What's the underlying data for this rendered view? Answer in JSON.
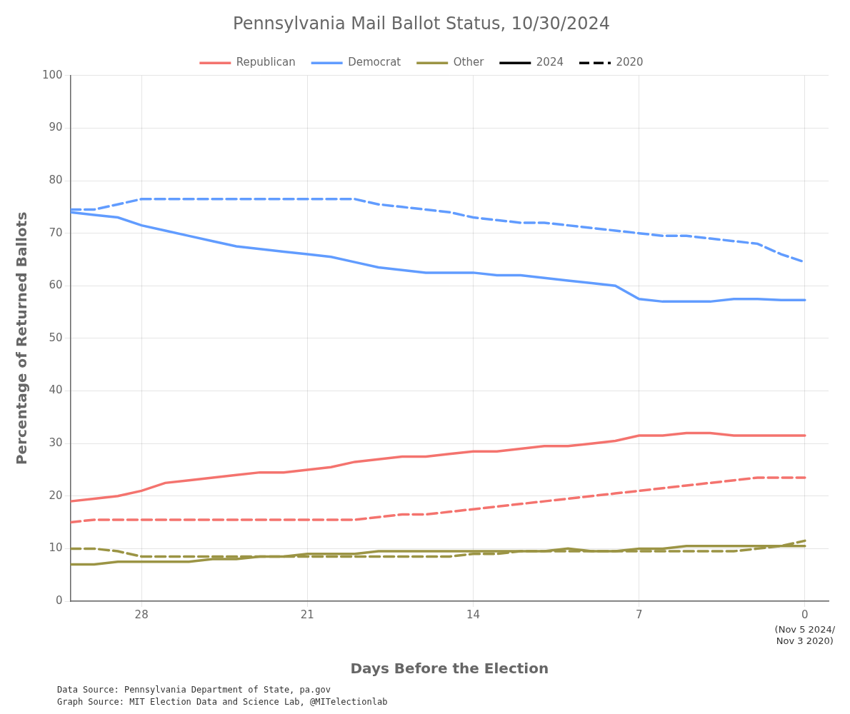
{
  "chart_data": {
    "type": "line",
    "title": "Pennsylvania Mail Ballot Status, 10/30/2024",
    "xlabel": "Days Before the Election",
    "ylabel": "Percentage of Returned Ballots",
    "x": [
      31,
      30,
      29,
      28,
      27,
      26,
      25,
      24,
      23,
      22,
      21,
      20,
      19,
      18,
      17,
      16,
      15,
      14,
      13,
      12,
      11,
      10,
      9,
      8,
      7,
      6,
      5,
      4,
      3,
      2,
      1,
      0
    ],
    "series": [
      {
        "name": "Democrat",
        "color": "#619CFF",
        "line_style": "solid",
        "values": [
          74.0,
          73.5,
          73.0,
          71.5,
          70.5,
          69.5,
          68.5,
          67.5,
          67.0,
          66.5,
          66.0,
          65.5,
          64.5,
          63.5,
          63.0,
          62.5,
          62.5,
          62.5,
          62.0,
          62.0,
          61.5,
          61.0,
          60.5,
          60.0,
          57.5,
          57.0,
          57.0,
          57.0,
          57.5,
          57.5,
          57.3,
          57.3
        ]
      },
      {
        "name": "Republican",
        "color": "#F4736E",
        "line_style": "solid",
        "values": [
          19.0,
          19.5,
          20.0,
          21.0,
          22.5,
          23.0,
          23.5,
          24.0,
          24.5,
          24.5,
          25.0,
          25.5,
          26.5,
          27.0,
          27.5,
          27.5,
          28.0,
          28.5,
          28.5,
          29.0,
          29.5,
          29.5,
          30.0,
          30.5,
          31.5,
          31.5,
          32.0,
          32.0,
          31.5,
          31.5,
          31.5,
          31.5
        ]
      },
      {
        "name": "Other",
        "color": "#9B9444",
        "line_style": "solid",
        "values": [
          7.0,
          7.0,
          7.5,
          7.5,
          7.5,
          7.5,
          8.0,
          8.0,
          8.5,
          8.5,
          9.0,
          9.0,
          9.0,
          9.5,
          9.5,
          9.5,
          9.5,
          9.5,
          9.5,
          9.5,
          9.5,
          10.0,
          9.5,
          9.5,
          10.0,
          10.0,
          10.5,
          10.5,
          10.5,
          10.5,
          10.5,
          10.5
        ]
      },
      {
        "name": "Democrat",
        "color": "#619CFF",
        "line_style": "dashed",
        "values": [
          74.5,
          74.5,
          75.5,
          76.5,
          76.5,
          76.5,
          76.5,
          76.5,
          76.5,
          76.5,
          76.5,
          76.5,
          76.5,
          75.5,
          75.0,
          74.5,
          74.0,
          73.0,
          72.5,
          72.0,
          72.0,
          71.5,
          71.0,
          70.5,
          70.0,
          69.5,
          69.5,
          69.0,
          68.5,
          68.0,
          66.0,
          64.5
        ]
      },
      {
        "name": "Republican",
        "color": "#F4736E",
        "line_style": "dashed",
        "values": [
          15.0,
          15.5,
          15.5,
          15.5,
          15.5,
          15.5,
          15.5,
          15.5,
          15.5,
          15.5,
          15.5,
          15.5,
          15.5,
          16.0,
          16.5,
          16.5,
          17.0,
          17.5,
          18.0,
          18.5,
          19.0,
          19.5,
          20.0,
          20.5,
          21.0,
          21.5,
          22.0,
          22.5,
          23.0,
          23.5,
          23.5,
          23.5
        ]
      },
      {
        "name": "Other",
        "color": "#9B9444",
        "line_style": "dashed",
        "values": [
          10.0,
          10.0,
          9.5,
          8.5,
          8.5,
          8.5,
          8.5,
          8.5,
          8.5,
          8.5,
          8.5,
          8.5,
          8.5,
          8.5,
          8.5,
          8.5,
          8.5,
          9.0,
          9.0,
          9.5,
          9.5,
          9.5,
          9.5,
          9.5,
          9.5,
          9.5,
          9.5,
          9.5,
          9.5,
          10.0,
          10.5,
          11.5
        ]
      }
    ],
    "xlim": [
      31,
      -1
    ],
    "xticks": [
      28,
      21,
      14,
      7,
      0
    ],
    "ylim": [
      0,
      100
    ],
    "yticks": [
      0,
      10,
      20,
      30,
      40,
      50,
      60,
      70,
      80,
      90,
      100
    ],
    "grid": true,
    "legend": "top",
    "legend_entries": [
      {
        "name": "Republican",
        "color": "#F4736E",
        "line_style": "solid"
      },
      {
        "name": "Democrat",
        "color": "#619CFF",
        "line_style": "solid"
      },
      {
        "name": "Other",
        "color": "#9B9444",
        "line_style": "solid"
      },
      {
        "name": "2024",
        "color": "#000000",
        "line_style": "solid"
      },
      {
        "name": "2020",
        "color": "#000000",
        "line_style": "dashed"
      }
    ],
    "annotations": [
      {
        "text": "(Nov 5 2024/\nNov 3 2020)",
        "x": 0
      },
      {
        "text": "Data Source: Pennsylvania Department of State, pa.gov"
      },
      {
        "text": "Graph Source: MIT Election Data and Science Lab, @MITelectionlab"
      }
    ]
  }
}
